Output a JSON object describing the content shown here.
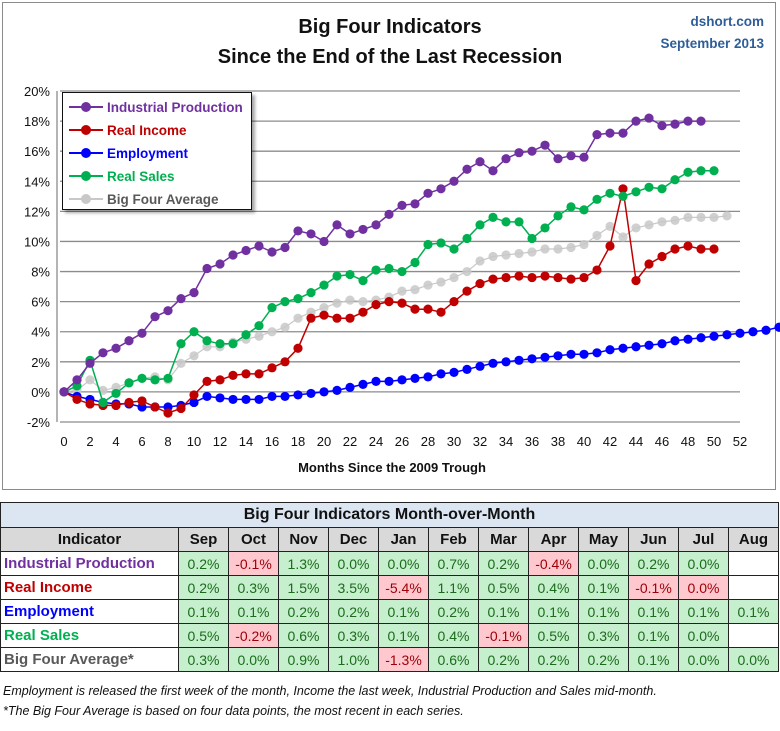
{
  "header": {
    "title_line1": "Big Four Indicators",
    "title_line2": "Since the End of the Last Recession",
    "source": "dshort.com",
    "date": "September 2013"
  },
  "colors": {
    "industrial_production": "#7030a0",
    "real_income": "#c00000",
    "employment": "#0000ff",
    "real_sales": "#00b050",
    "big_four_average": "#c8c8c8",
    "legend_avg_text": "#595959"
  },
  "chart_data": {
    "type": "line",
    "title": "Big Four Indicators Since the End of the Last Recession",
    "xlabel": "Months Since the 2009 Trough",
    "ylabel": "",
    "xlim": [
      0,
      52
    ],
    "ylim": [
      -2,
      20
    ],
    "grid": true,
    "legend_position": "top-left",
    "x_ticks": [
      "0",
      "2",
      "4",
      "6",
      "8",
      "10",
      "12",
      "14",
      "16",
      "18",
      "20",
      "22",
      "24",
      "26",
      "28",
      "30",
      "32",
      "34",
      "36",
      "38",
      "40",
      "42",
      "44",
      "46",
      "48",
      "50",
      "52"
    ],
    "y_ticks": [
      "-2%",
      "0%",
      "2%",
      "4%",
      "6%",
      "8%",
      "10%",
      "12%",
      "14%",
      "16%",
      "18%",
      "20%"
    ],
    "series": [
      {
        "key": "industrial_production",
        "name": "Industrial Production",
        "values": [
          0,
          0.8,
          1.9,
          2.6,
          2.9,
          3.4,
          3.9,
          5.0,
          5.4,
          6.2,
          6.6,
          8.2,
          8.5,
          9.1,
          9.4,
          9.7,
          9.3,
          9.6,
          10.7,
          10.5,
          10.0,
          11.1,
          10.5,
          10.8,
          11.1,
          11.8,
          12.4,
          12.5,
          13.2,
          13.5,
          14.0,
          14.8,
          15.3,
          14.7,
          15.5,
          15.9,
          16.0,
          16.4,
          15.5,
          15.7,
          15.6,
          17.1,
          17.2,
          17.2,
          18.0,
          18.2,
          17.7,
          17.8,
          18.0,
          18.0
        ]
      },
      {
        "key": "real_income",
        "name": "Real Income",
        "values": [
          0,
          -0.5,
          -0.8,
          -0.9,
          -0.9,
          -0.7,
          -0.6,
          -1.0,
          -1.4,
          -1.1,
          -0.2,
          0.7,
          0.8,
          1.1,
          1.2,
          1.2,
          1.6,
          2.0,
          2.9,
          4.9,
          5.1,
          4.9,
          4.9,
          5.3,
          5.8,
          6.0,
          5.9,
          5.5,
          5.5,
          5.3,
          6.0,
          6.7,
          7.2,
          7.5,
          7.6,
          7.7,
          7.6,
          7.7,
          7.6,
          7.5,
          7.6,
          8.1,
          9.7,
          13.5,
          7.4,
          8.5,
          9.0,
          9.5,
          9.7,
          9.5,
          9.5
        ]
      },
      {
        "key": "employment",
        "name": "Employment",
        "values": [
          0,
          -0.3,
          -0.5,
          -0.7,
          -0.8,
          -0.8,
          -1.0,
          -1.0,
          -1.0,
          -0.9,
          -0.7,
          -0.3,
          -0.4,
          -0.5,
          -0.5,
          -0.5,
          -0.3,
          -0.3,
          -0.2,
          -0.1,
          0.0,
          0.1,
          0.3,
          0.5,
          0.7,
          0.7,
          0.8,
          0.9,
          1.0,
          1.2,
          1.3,
          1.5,
          1.7,
          1.9,
          2.0,
          2.1,
          2.2,
          2.3,
          2.4,
          2.5,
          2.5,
          2.6,
          2.8,
          2.9,
          3.0,
          3.1,
          3.2,
          3.4,
          3.5,
          3.6,
          3.7,
          3.8,
          3.9,
          4.0,
          4.1,
          4.3
        ]
      },
      {
        "key": "real_sales",
        "name": "Real Sales",
        "values": [
          0,
          0.4,
          2.1,
          -0.7,
          -0.1,
          0.6,
          0.9,
          0.8,
          0.9,
          3.2,
          4.0,
          3.4,
          3.2,
          3.2,
          3.8,
          4.4,
          5.6,
          6.0,
          6.2,
          6.6,
          7.1,
          7.7,
          7.8,
          7.4,
          8.1,
          8.2,
          8.0,
          8.6,
          9.8,
          9.9,
          9.5,
          10.2,
          11.1,
          11.6,
          11.3,
          11.3,
          10.2,
          10.9,
          11.7,
          12.3,
          12.1,
          12.8,
          13.2,
          13.0,
          13.3,
          13.6,
          13.5,
          14.1,
          14.6,
          14.7,
          14.7
        ]
      },
      {
        "key": "big_four_average",
        "name": "Big Four Average",
        "values": [
          0,
          0.1,
          0.8,
          0.1,
          0.3,
          0.6,
          0.9,
          1.0,
          0.8,
          1.9,
          2.4,
          3.0,
          3.0,
          3.3,
          3.5,
          3.7,
          4.0,
          4.3,
          4.9,
          5.3,
          5.6,
          5.9,
          6.1,
          6.0,
          6.1,
          6.3,
          6.7,
          6.8,
          7.1,
          7.3,
          7.6,
          8.0,
          8.7,
          9.0,
          9.1,
          9.2,
          9.3,
          9.5,
          9.5,
          9.6,
          9.8,
          10.4,
          11.0,
          10.3,
          10.9,
          11.1,
          11.3,
          11.4,
          11.6,
          11.6,
          11.6,
          11.7
        ]
      }
    ]
  },
  "table": {
    "title": "Big Four Indicators Month-over-Month",
    "header_label": "Indicator",
    "months": [
      "Sep",
      "Oct",
      "Nov",
      "Dec",
      "Jan",
      "Feb",
      "Mar",
      "Apr",
      "May",
      "Jun",
      "Jul",
      "Aug"
    ],
    "rows": [
      {
        "key": "industrial_production",
        "label": "Industrial Production",
        "values": [
          "0.2%",
          "-0.1%",
          "1.3%",
          "0.0%",
          "0.0%",
          "0.7%",
          "0.2%",
          "-0.4%",
          "0.0%",
          "0.2%",
          "0.0%",
          ""
        ],
        "signs": [
          "pos",
          "neg",
          "pos",
          "pos",
          "pos",
          "pos",
          "pos",
          "neg",
          "pos",
          "pos",
          "pos",
          "emp"
        ]
      },
      {
        "key": "real_income",
        "label": "Real Income",
        "values": [
          "0.2%",
          "0.3%",
          "1.5%",
          "3.5%",
          "-5.4%",
          "1.1%",
          "0.5%",
          "0.4%",
          "0.1%",
          "-0.1%",
          "0.0%",
          ""
        ],
        "signs": [
          "pos",
          "pos",
          "pos",
          "pos",
          "neg",
          "pos",
          "pos",
          "pos",
          "pos",
          "neg",
          "neg",
          "emp"
        ]
      },
      {
        "key": "employment",
        "label": "Employment",
        "values": [
          "0.1%",
          "0.1%",
          "0.2%",
          "0.2%",
          "0.1%",
          "0.2%",
          "0.1%",
          "0.1%",
          "0.1%",
          "0.1%",
          "0.1%",
          "0.1%"
        ],
        "signs": [
          "pos",
          "pos",
          "pos",
          "pos",
          "pos",
          "pos",
          "pos",
          "pos",
          "pos",
          "pos",
          "pos",
          "pos"
        ]
      },
      {
        "key": "real_sales",
        "label": "Real Sales",
        "values": [
          "0.5%",
          "-0.2%",
          "0.6%",
          "0.3%",
          "0.1%",
          "0.4%",
          "-0.1%",
          "0.5%",
          "0.3%",
          "0.1%",
          "0.0%",
          ""
        ],
        "signs": [
          "pos",
          "neg",
          "pos",
          "pos",
          "pos",
          "pos",
          "neg",
          "pos",
          "pos",
          "pos",
          "pos",
          "emp"
        ]
      },
      {
        "key": "big_four_average",
        "label": "Big Four Average*",
        "values": [
          "0.3%",
          "0.0%",
          "0.9%",
          "1.0%",
          "-1.3%",
          "0.6%",
          "0.2%",
          "0.2%",
          "0.2%",
          "0.1%",
          "0.0%",
          "0.0%"
        ],
        "signs": [
          "pos",
          "pos",
          "pos",
          "pos",
          "neg",
          "pos",
          "pos",
          "pos",
          "pos",
          "pos",
          "pos",
          "pos"
        ]
      }
    ],
    "row_label_colors": [
      "#7030a0",
      "#c00000",
      "#0000ff",
      "#00b050",
      "#595959"
    ]
  },
  "notes": {
    "line1": "Employment is released the first week of the month, Income the last week, Industrial Production and Sales mid-month.",
    "line2": "*The Big Four Average is based on four data points, the most recent in each series."
  }
}
